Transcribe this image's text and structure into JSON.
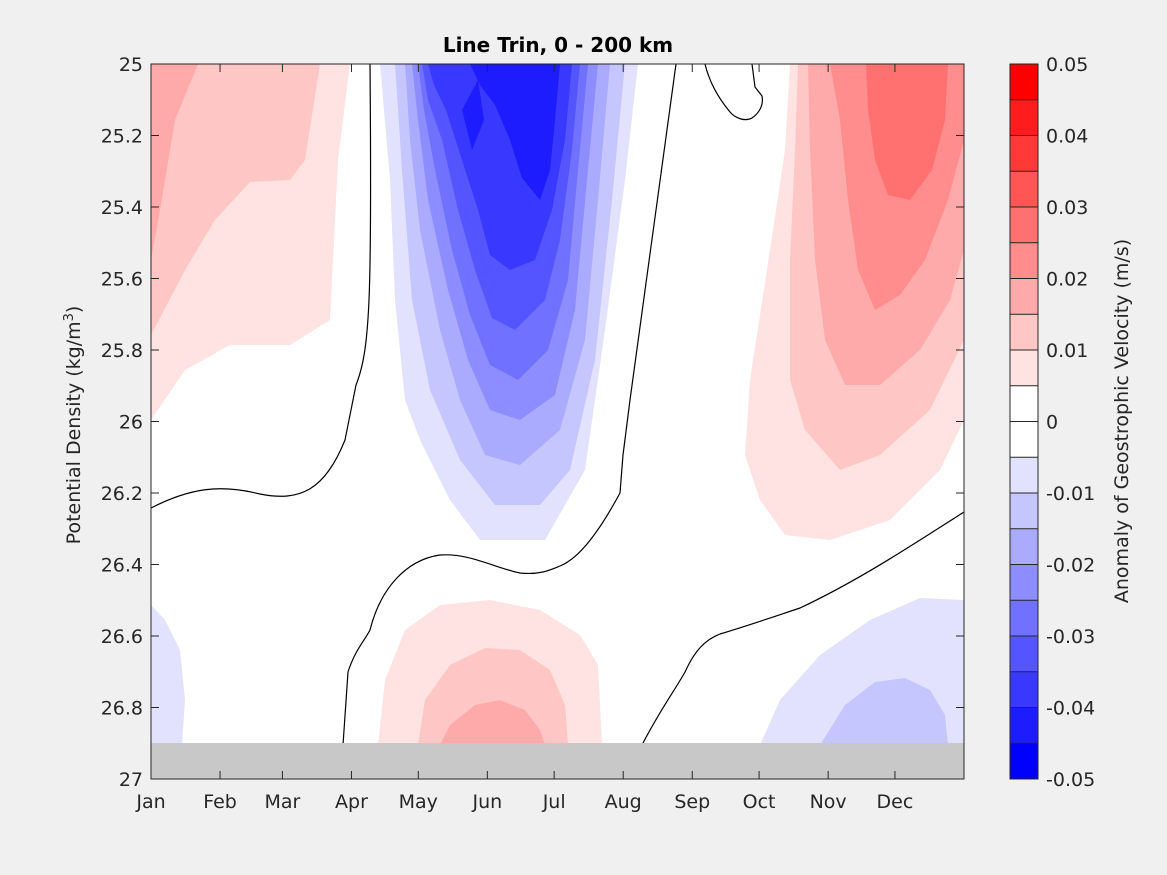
{
  "chart_data": {
    "type": "heatmap",
    "subtype": "filled-contour",
    "title": "Line Trin, 0 - 200 km",
    "xlabel": "",
    "ylabel": "Potential Density (kg/m",
    "ylabel_sup": "3",
    "ylabel_tail": ")",
    "x_tick_labels": [
      "Jan",
      "Feb",
      "Mar",
      "Apr",
      "May",
      "Jun",
      "Jul",
      "Aug",
      "Sep",
      "Oct",
      "Nov",
      "Dec"
    ],
    "y_ticks": [
      25,
      25.2,
      25.4,
      25.6,
      25.8,
      26,
      26.2,
      26.4,
      26.6,
      26.8,
      27
    ],
    "y_tick_labels": [
      "25",
      "25.2",
      "25.4",
      "25.6",
      "25.8",
      "26",
      "26.2",
      "26.4",
      "26.6",
      "26.8",
      "27"
    ],
    "ylim": [
      25,
      27
    ],
    "y_reversed": true,
    "no_data_below": 26.9,
    "no_data_color": "#c8c8c8",
    "zero_contour_color": "#000000",
    "colorbar": {
      "label": "Anomaly of Geostrophic Velocity (m/s)",
      "limits": [
        -0.05,
        0.05
      ],
      "tick_values": [
        0.05,
        0.04,
        0.03,
        0.02,
        0.01,
        0,
        -0.01,
        -0.02,
        -0.03,
        -0.04,
        -0.05
      ],
      "tick_labels": [
        "0.05",
        "0.04",
        "0.03",
        "0.02",
        "0.01",
        "0",
        "-0.01",
        "-0.02",
        "-0.03",
        "-0.04",
        "-0.05"
      ],
      "level_colors_top_to_bottom": [
        "#ff0000",
        "#ff1c1c",
        "#ff3838",
        "#ff5555",
        "#ff7171",
        "#ff8d8d",
        "#ffaaaa",
        "#ffc6c6",
        "#ffe2e2",
        "#ffffff",
        "#ffffff",
        "#e2e2ff",
        "#c6c6ff",
        "#aaaaff",
        "#8d8dff",
        "#7171ff",
        "#5555ff",
        "#3838ff",
        "#1c1cff",
        "#0000ff"
      ]
    },
    "anomaly_centers": [
      {
        "name": "spring-summer surface negative core",
        "month": 5.9,
        "density": 25.25,
        "value": -0.045
      },
      {
        "name": "autumn-winter surface positive core",
        "month": 11.8,
        "density": 25.3,
        "value": 0.028
      },
      {
        "name": "early-year surface positive",
        "month": 1.1,
        "density": 25.3,
        "value": 0.014
      },
      {
        "name": "summer deep positive",
        "month": 6.0,
        "density": 26.85,
        "value": 0.018
      },
      {
        "name": "late-year deep negative",
        "month": 12.0,
        "density": 26.8,
        "value": -0.015
      },
      {
        "name": "early-year deep negative",
        "month": 1.1,
        "density": 26.7,
        "value": -0.006
      }
    ]
  }
}
